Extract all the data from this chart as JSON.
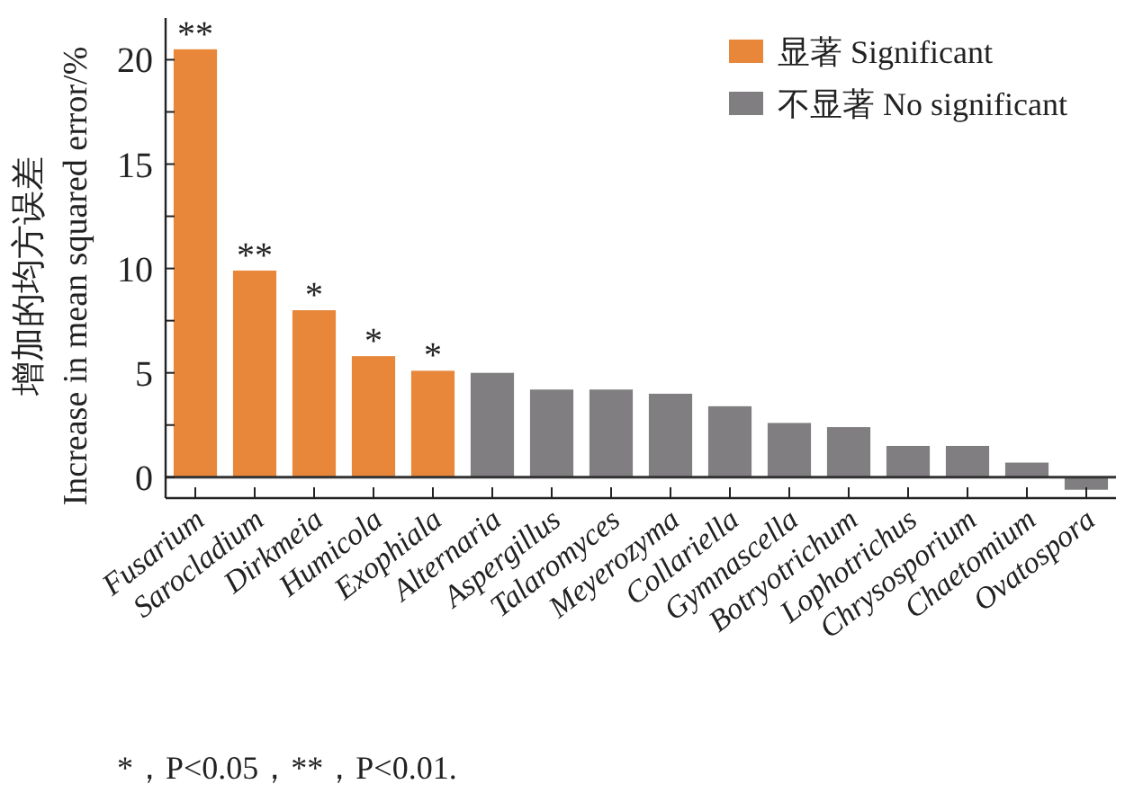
{
  "chart_data": {
    "type": "bar",
    "ylabel": "增加的均方误差\nIncrease in mean squared error/%",
    "categories": [
      "Fusarium",
      "Sarocladium",
      "Dirkmeia",
      "Humicola",
      "Exophiala",
      "Alternaria",
      "Aspergillus",
      "Talaromyces",
      "Meyerozyma",
      "Collariella",
      "Gymnascella",
      "Botryotrichum",
      "Lophotrichus",
      "Chrysosporium",
      "Chaetomium",
      "Ovatospora"
    ],
    "series": [
      {
        "name": "显著 Significant",
        "color": "#e8873a",
        "values": [
          20.5,
          9.9,
          8.0,
          5.8,
          5.1,
          null,
          null,
          null,
          null,
          null,
          null,
          null,
          null,
          null,
          null,
          null
        ]
      },
      {
        "name": "不显著 No significant",
        "color": "#807e81",
        "values": [
          null,
          null,
          null,
          null,
          null,
          5.0,
          4.2,
          4.2,
          4.0,
          3.4,
          2.6,
          2.4,
          1.5,
          1.5,
          0.7,
          -0.6
        ]
      }
    ],
    "ylim": [
      -1,
      22
    ],
    "yticks": [
      0,
      {
        "value": 2.5,
        "label": null
      },
      5,
      {
        "value": 7.5,
        "label": null
      },
      10,
      {
        "value": 12.5,
        "label": null
      },
      15,
      {
        "value": 17.5,
        "label": null
      },
      20
    ],
    "ref_lines": [
      {
        "axis": "y",
        "value": 0
      }
    ],
    "legend": "top right",
    "annotations": [
      {
        "text": "**",
        "x": "Fusarium",
        "y": 20.5
      },
      {
        "text": "**",
        "x": "Sarocladium",
        "y": 9.9
      },
      {
        "text": "*",
        "x": "Dirkmeia",
        "y": 8.0
      },
      {
        "text": "*",
        "x": "Humicola",
        "y": 5.8
      },
      {
        "text": "*",
        "x": "Exophiala",
        "y": 5.1
      },
      "*，P<0.05，**，P<0.01."
    ]
  }
}
